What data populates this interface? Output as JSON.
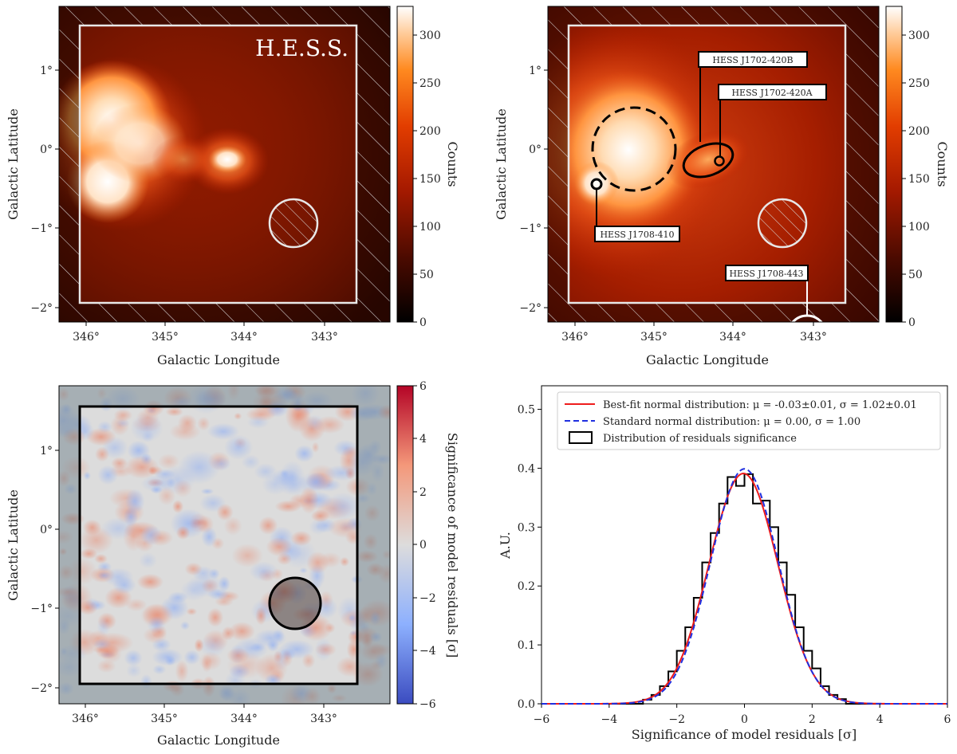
{
  "panels": {
    "tl": {
      "watermark": "H.E.S.S.",
      "xlabel": "Galactic Longitude",
      "ylabel": "Galactic Latitude",
      "xticks": [
        "346°",
        "345°",
        "344°",
        "343°"
      ],
      "yticks": [
        "1°",
        "0°",
        "−1°",
        "−2°"
      ],
      "colorbar": {
        "label": "Counts",
        "ticks": [
          "0",
          "50",
          "100",
          "150",
          "200",
          "250",
          "300"
        ],
        "range": [
          0,
          330
        ]
      }
    },
    "tr": {
      "xlabel": "Galactic Longitude",
      "ylabel": "Galactic Latitude",
      "xticks": [
        "346°",
        "345°",
        "344°",
        "343°"
      ],
      "yticks": [
        "1°",
        "0°",
        "−1°",
        "−2°"
      ],
      "labels": [
        "HESS J1702-420B",
        "HESS J1702-420A",
        "HESS J1708-410",
        "HESS J1708-443"
      ],
      "colorbar": {
        "label": "Counts",
        "ticks": [
          "0",
          "50",
          "100",
          "150",
          "200",
          "250",
          "300"
        ],
        "range": [
          0,
          330
        ]
      }
    },
    "bl": {
      "xlabel": "Galactic Longitude",
      "ylabel": "Galactic Latitude",
      "xticks": [
        "346°",
        "345°",
        "344°",
        "343°"
      ],
      "yticks": [
        "1°",
        "0°",
        "−1°",
        "−2°"
      ],
      "colorbar": {
        "label": "Significance of model residuals [σ]",
        "ticks": [
          "6",
          "4",
          "2",
          "0",
          "−2",
          "−4",
          "−6"
        ],
        "range": [
          -6,
          6
        ]
      }
    }
  },
  "chart_data": {
    "type": "histogram",
    "xlabel": "Significance of model residuals [σ]",
    "ylabel": "A.U.",
    "xlim": [
      -6,
      6
    ],
    "ylim": [
      0,
      0.54
    ],
    "xticks": [
      -6,
      -4,
      -2,
      0,
      2,
      4,
      6
    ],
    "yticks": [
      0.0,
      0.1,
      0.2,
      0.3,
      0.4,
      0.5
    ],
    "xtick_labels": [
      "−6",
      "−4",
      "−2",
      "0",
      "2",
      "4",
      "6"
    ],
    "ytick_labels": [
      "0.0",
      "0.1",
      "0.2",
      "0.3",
      "0.4",
      "0.5"
    ],
    "series": [
      {
        "name": "Best-fit normal distribution",
        "legend": "Best-fit normal distribution: μ = -0.03±0.01, σ = 1.02±0.01",
        "kind": "normal",
        "mu": -0.03,
        "sigma": 1.02,
        "color": "#ee1c1c"
      },
      {
        "name": "Standard normal distribution",
        "legend": "Standard normal distribution: μ = 0.00, σ = 1.00",
        "kind": "normal",
        "mu": 0.0,
        "sigma": 1.0,
        "color": "#1f2fe0"
      },
      {
        "name": "Distribution of residuals significance",
        "legend": "Distribution of residuals significance",
        "kind": "histogram",
        "color": "#000000",
        "bin_edges": [
          -3.0,
          -2.75,
          -2.5,
          -2.25,
          -2.0,
          -1.75,
          -1.5,
          -1.25,
          -1.0,
          -0.75,
          -0.5,
          -0.25,
          0.0,
          0.25,
          0.5,
          0.75,
          1.0,
          1.25,
          1.5,
          1.75,
          2.0,
          2.25,
          2.5,
          2.75,
          3.0
        ],
        "values": [
          0.007,
          0.015,
          0.03,
          0.055,
          0.09,
          0.13,
          0.18,
          0.24,
          0.29,
          0.34,
          0.385,
          0.37,
          0.39,
          0.34,
          0.345,
          0.3,
          0.24,
          0.185,
          0.13,
          0.09,
          0.06,
          0.03,
          0.015,
          0.008
        ]
      }
    ]
  }
}
